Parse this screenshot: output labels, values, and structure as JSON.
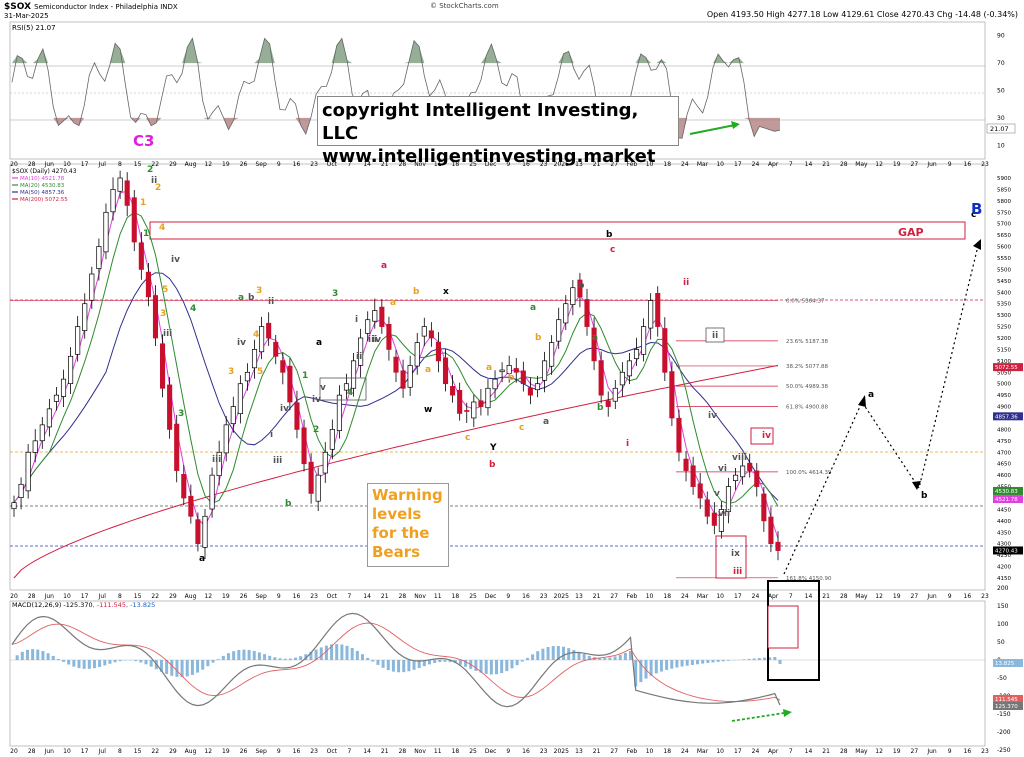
{
  "header": {
    "symbol": "$SOX",
    "name": "Semiconductor Index - Philadelphia INDX",
    "date": "31-Mar-2025",
    "source": "© StockCharts.com",
    "ohlc": "Open 4193.50 High 4277.18 Low 4129.61 Close 4270.43 Chg -14.48 (-0.34%)"
  },
  "rsi": {
    "label": "RSI(5) 21.07",
    "value_tag": "21.07",
    "ticks": [
      "90",
      "70",
      "50",
      "30",
      "10"
    ]
  },
  "price_panel": {
    "legend_title": "$SOX (Daily) 4270.43",
    "legend": [
      {
        "text": "MA(10) 4521.78",
        "color": "#e040e0"
      },
      {
        "text": "MA(20) 4530.83",
        "color": "#2e8b2e"
      },
      {
        "text": "MA(50) 4857.36",
        "color": "#303090"
      },
      {
        "text": "MA(200) 5072.55",
        "color": "#d02040"
      }
    ],
    "y_ticks": [
      "5900",
      "5850",
      "5800",
      "5750",
      "5700",
      "5650",
      "5600",
      "5550",
      "5500",
      "5450",
      "5400",
      "5350",
      "5300",
      "5250",
      "5200",
      "5150",
      "5100",
      "5050",
      "5000",
      "4950",
      "4900",
      "4850",
      "4800",
      "4750",
      "4700",
      "4650",
      "4600",
      "4550",
      "4500",
      "4450",
      "4400",
      "4350",
      "4300",
      "4250",
      "4200",
      "4150"
    ],
    "value_tags": [
      {
        "text": "5072.55",
        "color": "#d02040"
      },
      {
        "text": "4857.36",
        "color": "#303090"
      },
      {
        "text": "4530.83",
        "color": "#2e8b2e"
      },
      {
        "text": "4521.78",
        "color": "#e040e0"
      },
      {
        "text": "4270.43",
        "color": "#000000"
      }
    ],
    "fib_labels": [
      "0.0% 5364.37",
      "23.6% 5187.38",
      "38.2% 5077.88",
      "50.0% 4989.38",
      "61.8% 4900.88",
      "100.0% 4614.39",
      "161.8% 4150.90"
    ],
    "gap_label": "GAP",
    "copyright_lines": [
      "copyright Intelligent Investing, LLC",
      "www.intelligentinvesting.market"
    ],
    "warning_lines": [
      "Warning",
      "levels",
      "for the",
      "Bears"
    ],
    "c3_label": "C3",
    "wave_labels": [
      {
        "t": "2",
        "c": "#2e8b2e"
      },
      {
        "t": "ii",
        "c": "#555555"
      },
      {
        "t": "2",
        "c": "#e8a020"
      },
      {
        "t": "1",
        "c": "#e8a020"
      },
      {
        "t": "1",
        "c": "#2e8b2e"
      },
      {
        "t": "4",
        "c": "#e8a020"
      },
      {
        "t": "iv",
        "c": "#555555"
      },
      {
        "t": "4",
        "c": "#2e8b2e"
      },
      {
        "t": "5",
        "c": "#e8a020"
      },
      {
        "t": "3",
        "c": "#e8a020"
      },
      {
        "t": "iii",
        "c": "#555555"
      },
      {
        "t": "3",
        "c": "#2e8b2e"
      },
      {
        "t": "iii",
        "c": "#555555"
      },
      {
        "t": "a",
        "c": "#2e8b2e"
      },
      {
        "t": "b",
        "c": "#555555"
      },
      {
        "t": "3",
        "c": "#e8a020"
      },
      {
        "t": "ii",
        "c": "#555555"
      },
      {
        "t": "4",
        "c": "#e8a020"
      },
      {
        "t": "iv",
        "c": "#555555"
      },
      {
        "t": "3",
        "c": "#e8a020"
      },
      {
        "t": "5",
        "c": "#e8a020"
      },
      {
        "t": "iv",
        "c": "#555555"
      },
      {
        "t": "i",
        "c": "#555555"
      },
      {
        "t": "a",
        "c": "#000000"
      },
      {
        "t": "iii",
        "c": "#555555"
      },
      {
        "t": "b",
        "c": "#2e8b2e"
      },
      {
        "t": "iv",
        "c": "#555555"
      },
      {
        "t": "v",
        "c": "#555555"
      },
      {
        "t": "1",
        "c": "#2e8b2e"
      },
      {
        "t": "2",
        "c": "#2e8b2e"
      },
      {
        "t": "3",
        "c": "#2e8b2e"
      },
      {
        "t": "ii",
        "c": "#555555"
      },
      {
        "t": "4",
        "c": "#2e8b2e"
      },
      {
        "t": "a",
        "c": "#000000"
      },
      {
        "t": "i",
        "c": "#555555"
      },
      {
        "t": "iii",
        "c": "#555555"
      },
      {
        "t": "iv",
        "c": "#555555"
      },
      {
        "t": "a",
        "c": "#d02040"
      },
      {
        "t": "a",
        "c": "#e8a020"
      },
      {
        "t": "b",
        "c": "#e8a020"
      },
      {
        "t": "x",
        "c": "#000000"
      },
      {
        "t": "w",
        "c": "#000000"
      },
      {
        "t": "a",
        "c": "#e8a020"
      },
      {
        "t": "c",
        "c": "#e8a020"
      },
      {
        "t": "a",
        "c": "#e8a020"
      },
      {
        "t": "Y",
        "c": "#000000"
      },
      {
        "t": "b",
        "c": "#d02040"
      },
      {
        "t": "b",
        "c": "#e8a020"
      },
      {
        "t": "a",
        "c": "#2e8b2e"
      },
      {
        "t": "b",
        "c": "#e8a020"
      },
      {
        "t": "a",
        "c": "#555555"
      },
      {
        "t": "c",
        "c": "#e8a020"
      },
      {
        "t": "b",
        "c": "#555555"
      },
      {
        "t": "a",
        "c": "#2e8b2e"
      },
      {
        "t": "b",
        "c": "#2e8b2e"
      },
      {
        "t": "b",
        "c": "#000000"
      },
      {
        "t": "c",
        "c": "#d02040"
      },
      {
        "t": "ii",
        "c": "#d02040"
      },
      {
        "t": "i",
        "c": "#d02040"
      },
      {
        "t": "ii",
        "c": "#555555"
      },
      {
        "t": "iv",
        "c": "#555555"
      },
      {
        "t": "vi",
        "c": "#555555"
      },
      {
        "t": "viii",
        "c": "#555555"
      },
      {
        "t": "iv",
        "c": "#d02040"
      },
      {
        "t": "v",
        "c": "#555555"
      },
      {
        "t": "vii",
        "c": "#555555"
      },
      {
        "t": "ix",
        "c": "#555555"
      },
      {
        "t": "iii",
        "c": "#d02040"
      },
      {
        "t": "a",
        "c": "#000000"
      },
      {
        "t": "b",
        "c": "#000000"
      },
      {
        "t": "c",
        "c": "#000000"
      },
      {
        "t": "B",
        "c": "#1030c0"
      },
      {
        "t": "v?",
        "c": "#d02040"
      },
      {
        "t": "c",
        "c": "#000000"
      },
      {
        "t": "A",
        "c": "#1030c0"
      }
    ]
  },
  "macd": {
    "label": "MACD(12,26,9) -125.370, -111.545, -13.825",
    "label_parts": [
      "MACD(12,26,9) -125.370",
      ", -111.545",
      ", -13.825"
    ],
    "y_ticks": [
      "200",
      "150",
      "100",
      "50",
      "0",
      "-50",
      "-100",
      "-150",
      "-200",
      "-250"
    ],
    "value_tags": [
      "13.825",
      "111.545",
      "125.370"
    ]
  },
  "x_axis": {
    "rsi_row": [
      "20",
      "28",
      "Jun",
      "10",
      "17",
      "Jul",
      "8",
      "15",
      "22",
      "29",
      "Aug",
      "12",
      "19",
      "26",
      "Sep",
      "9",
      "16",
      "23",
      "Oct",
      "7",
      "14",
      "21",
      "28",
      "Nov",
      "11",
      "18",
      "25",
      "Dec",
      "9",
      "16",
      "23",
      "2025",
      "13",
      "21",
      "27",
      "Feb",
      "10",
      "18",
      "24",
      "Mar",
      "10",
      "17",
      "24",
      "Apr",
      "7",
      "14",
      "21",
      "28",
      "May",
      "12",
      "19",
      "27",
      "Jun",
      "9",
      "16",
      "23"
    ],
    "price_row": [
      "20",
      "28",
      "Jun",
      "10",
      "17",
      "Jul",
      "8",
      "15",
      "22",
      "29",
      "Aug",
      "12",
      "19",
      "26",
      "Sep",
      "9",
      "16",
      "23",
      "Oct",
      "7",
      "14",
      "21",
      "28",
      "Nov",
      "11",
      "18",
      "25",
      "Dec",
      "9",
      "16",
      "23",
      "2025",
      "13",
      "21",
      "27",
      "Feb",
      "10",
      "18",
      "24",
      "Mar",
      "10",
      "17",
      "24",
      "Apr",
      "7",
      "14",
      "21",
      "28",
      "May",
      "12",
      "19",
      "27",
      "Jun",
      "9",
      "16",
      "23"
    ],
    "macd_row": [
      "20",
      "28",
      "Jun",
      "10",
      "17",
      "Jul",
      "8",
      "15",
      "22",
      "29",
      "Aug",
      "12",
      "19",
      "26",
      "Sep",
      "9",
      "16",
      "23",
      "Oct",
      "7",
      "14",
      "21",
      "28",
      "Nov",
      "11",
      "18",
      "25",
      "Dec",
      "9",
      "16",
      "23",
      "2025",
      "13",
      "21",
      "27",
      "Feb",
      "10",
      "18",
      "24",
      "Mar",
      "10",
      "17",
      "24",
      "Apr",
      "7",
      "14",
      "21",
      "28",
      "May",
      "12",
      "19",
      "27",
      "Jun",
      "9",
      "16",
      "23"
    ]
  },
  "chart_data": {
    "type": "candlestick",
    "title": "$SOX Semiconductor Index - Philadelphia INDX",
    "xlabel": "",
    "ylabel": "",
    "ylim": [
      4150,
      5900
    ],
    "close_approx": [
      4480,
      4560,
      4700,
      4750,
      4820,
      4890,
      4950,
      5020,
      5120,
      5250,
      5350,
      5480,
      5600,
      5750,
      5850,
      5900,
      5780,
      5620,
      5500,
      5380,
      5200,
      4980,
      4800,
      4620,
      4500,
      4420,
      4300,
      4420,
      4600,
      4700,
      4820,
      4900,
      5000,
      5050,
      5150,
      5250,
      5200,
      5120,
      5050,
      4920,
      4800,
      4650,
      4520,
      4600,
      4700,
      4800,
      4950,
      5000,
      5100,
      5200,
      5280,
      5320,
      5250,
      5150,
      5050,
      4980,
      5080,
      5180,
      5250,
      5200,
      5100,
      5000,
      4950,
      4870,
      4880,
      4920,
      4900,
      4980,
      5020,
      5060,
      5080,
      5050,
      5000,
      4950,
      5000,
      5100,
      5180,
      5280,
      5350,
      5420,
      5380,
      5250,
      5100,
      4950,
      4900,
      4980,
      5050,
      5100,
      5150,
      5250,
      5364,
      5250,
      5050,
      4850,
      4700,
      4620,
      4550,
      4500,
      4420,
      4380,
      4450,
      4550,
      4600,
      4640,
      4620,
      4550,
      4400,
      4300,
      4270
    ],
    "series": [
      {
        "name": "MA(10)",
        "last": 4521.78
      },
      {
        "name": "MA(20)",
        "last": 4530.83
      },
      {
        "name": "MA(50)",
        "last": 4857.36
      },
      {
        "name": "MA(200)",
        "last": 5072.55
      }
    ],
    "fib_retracement": [
      {
        "level": "0.0%",
        "value": 5364.37
      },
      {
        "level": "23.6%",
        "value": 5187.38
      },
      {
        "level": "38.2%",
        "value": 5077.88
      },
      {
        "level": "50.0%",
        "value": 4989.38
      },
      {
        "level": "61.8%",
        "value": 4900.88
      },
      {
        "level": "100.0%",
        "value": 4614.39
      },
      {
        "level": "161.8%",
        "value": 4150.9
      }
    ],
    "last_close": 4270.43,
    "rsi_last": 21.07,
    "macd": {
      "macd": -125.37,
      "signal": -111.545,
      "hist": -13.825
    },
    "colors": {
      "up": "#ffffff",
      "down": "#c8102e",
      "bar": "#000000"
    }
  }
}
